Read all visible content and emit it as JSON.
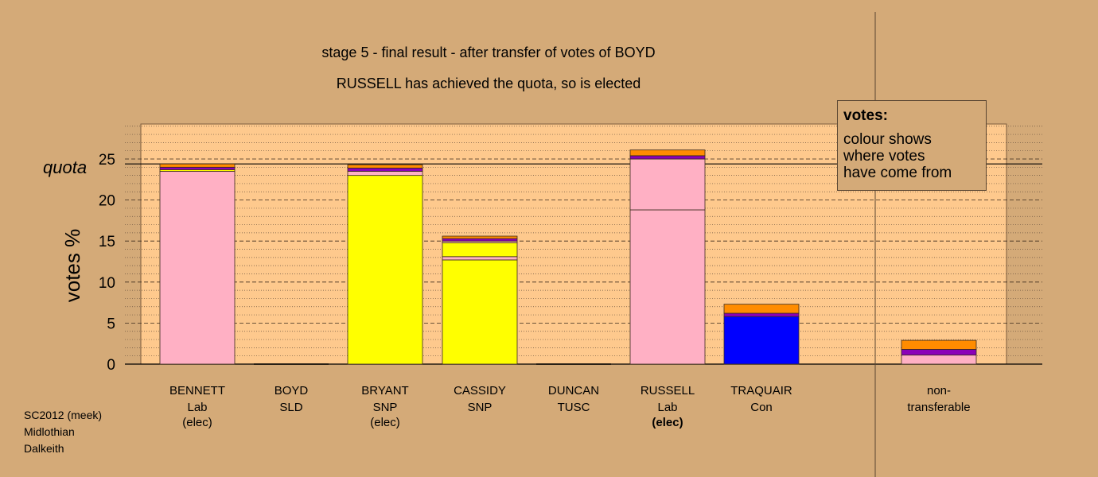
{
  "title": "stage 5 - final result - after transfer of votes of BOYD",
  "subtitle": "RUSSELL has achieved the quota, so is elected",
  "legend": {
    "title": "votes:",
    "lines": [
      "colour shows",
      "where votes",
      "have come from"
    ]
  },
  "footer": [
    "SC2012 (meek)",
    "Midlothian",
    "Dalkeith"
  ],
  "colors": {
    "background": "#d4aa78",
    "plot_area": "#fec98d",
    "Lab": "#ffb0c4",
    "SNP": "#ffff00",
    "Con": "#0000ff",
    "SLD": "#ff8c00",
    "TUSC": "#8b00b8"
  },
  "chart_data": {
    "type": "bar",
    "stacked": true,
    "ylabel": "votes %",
    "ylim": [
      0,
      29.5
    ],
    "yticks": [
      0,
      5,
      10,
      15,
      20,
      25
    ],
    "quota": 24.4,
    "quota_label": "quota",
    "grid": true,
    "legend_position": "top-right",
    "categories": [
      {
        "name": "BENNETT",
        "party": "Lab",
        "status": "(elec)",
        "status_bold": false
      },
      {
        "name": "BOYD",
        "party": "SLD",
        "status": "",
        "status_bold": false
      },
      {
        "name": "BRYANT",
        "party": "SNP",
        "status": "(elec)",
        "status_bold": false
      },
      {
        "name": "CASSIDY",
        "party": "SNP",
        "status": "",
        "status_bold": false
      },
      {
        "name": "DUNCAN",
        "party": "TUSC",
        "status": "",
        "status_bold": false
      },
      {
        "name": "RUSSELL",
        "party": "Lab",
        "status": "(elec)",
        "status_bold": true
      },
      {
        "name": "TRAQUAIR",
        "party": "Con",
        "status": "",
        "status_bold": false
      },
      {
        "name": "non-",
        "party": "transferable",
        "status": "",
        "status_bold": false
      }
    ],
    "bars": [
      [
        {
          "from": "Lab",
          "value": 23.5
        },
        {
          "from": "SNP",
          "value": 0.2
        },
        {
          "from": "TUSC",
          "value": 0.3
        },
        {
          "from": "SLD",
          "value": 0.4
        }
      ],
      [],
      [
        {
          "from": "SNP",
          "value": 23.0
        },
        {
          "from": "Lab",
          "value": 0.5
        },
        {
          "from": "TUSC",
          "value": 0.4
        },
        {
          "from": "SLD",
          "value": 0.4
        }
      ],
      [
        {
          "from": "SNP",
          "value": 12.7
        },
        {
          "from": "Lab",
          "value": 0.4
        },
        {
          "from": "SNP",
          "value": 1.7
        },
        {
          "from": "Lab",
          "value": 0.2
        },
        {
          "from": "TUSC",
          "value": 0.3
        },
        {
          "from": "SLD",
          "value": 0.3
        }
      ],
      [],
      [
        {
          "from": "Lab",
          "value": 18.8
        },
        {
          "from": "Lab",
          "value": 6.2
        },
        {
          "from": "TUSC",
          "value": 0.4
        },
        {
          "from": "SLD",
          "value": 0.7
        }
      ],
      [
        {
          "from": "Con",
          "value": 5.8
        },
        {
          "from": "TUSC",
          "value": 0.4
        },
        {
          "from": "SLD",
          "value": 1.1
        }
      ],
      [
        {
          "from": "Lab",
          "value": 1.1
        },
        {
          "from": "TUSC",
          "value": 0.7
        },
        {
          "from": "SLD",
          "value": 1.1
        }
      ]
    ]
  }
}
